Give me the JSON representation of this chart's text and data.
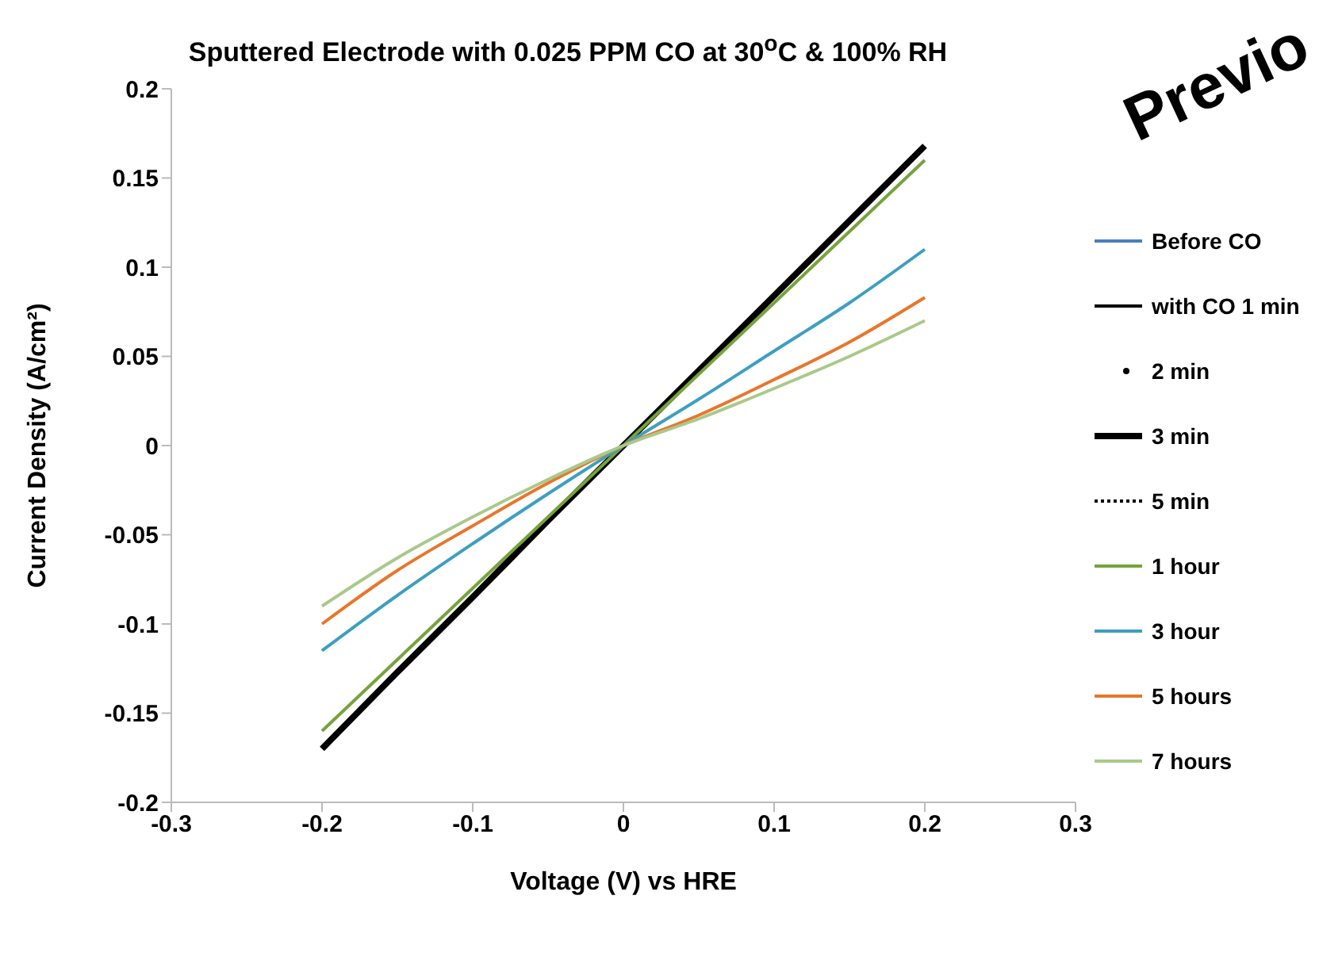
{
  "chart_data": {
    "type": "line",
    "title": "Sputtered Electrode with 0.025 PPM CO  at 30$^{o}$C  & 100% RH",
    "xlabel": "Voltage (V) vs HRE",
    "ylabel": "Current Density  (A/cm²)",
    "annotations": [
      "Previo"
    ],
    "x": [
      -0.2,
      -0.15,
      -0.1,
      -0.05,
      0,
      0.05,
      0.1,
      0.15,
      0.2
    ],
    "series": [
      {
        "name": "Before CO",
        "color": "#4a7ebb",
        "values": [
          null,
          null,
          null,
          null,
          null,
          null,
          null,
          null,
          null
        ]
      },
      {
        "name": "with CO 1 min",
        "color": "#000000",
        "values": [
          null,
          null,
          null,
          null,
          null,
          null,
          null,
          null,
          null
        ]
      },
      {
        "name": "2 min",
        "color": "#000000",
        "marker": "circle",
        "values": [
          null,
          null,
          null,
          null,
          null,
          null,
          null,
          null,
          null
        ]
      },
      {
        "name": "3 min",
        "color": "#000000",
        "values": [
          -0.17,
          -0.127,
          -0.085,
          -0.042,
          0,
          0.042,
          0.084,
          0.126,
          0.168
        ]
      },
      {
        "name": "5 min",
        "color": "#000000",
        "line_style": "dotted",
        "values": [
          null,
          null,
          null,
          null,
          null,
          null,
          null,
          null,
          null
        ]
      },
      {
        "name": "1 hour",
        "color": "#77a33c",
        "values": [
          -0.16,
          -0.12,
          -0.08,
          -0.04,
          0,
          0.04,
          0.08,
          0.12,
          0.16
        ]
      },
      {
        "name": "3 hour",
        "color": "#3d9fc0",
        "values": [
          -0.115,
          -0.084,
          -0.055,
          -0.027,
          0,
          0.026,
          0.053,
          0.08,
          0.11
        ]
      },
      {
        "name": "5 hours",
        "color": "#e8762c",
        "values": [
          -0.1,
          -0.07,
          -0.045,
          -0.021,
          0,
          0.017,
          0.037,
          0.058,
          0.083
        ]
      },
      {
        "name": "7 hours",
        "color": "#a9c98a",
        "values": [
          -0.09,
          -0.063,
          -0.04,
          -0.019,
          0,
          0.015,
          0.032,
          0.05,
          0.07
        ]
      }
    ],
    "xlim": [
      -0.3,
      0.3
    ],
    "xticks": [
      -0.3,
      -0.2,
      -0.1,
      0,
      0.1,
      0.2,
      0.3
    ],
    "ylim": [
      -0.2,
      0.2
    ],
    "yticks": [
      -0.2,
      -0.15,
      -0.1,
      -0.05,
      0,
      0.05,
      0.1,
      0.15,
      0.2
    ],
    "grid": false,
    "legend": "right",
    "marker": "none",
    "line_style": "solid"
  }
}
